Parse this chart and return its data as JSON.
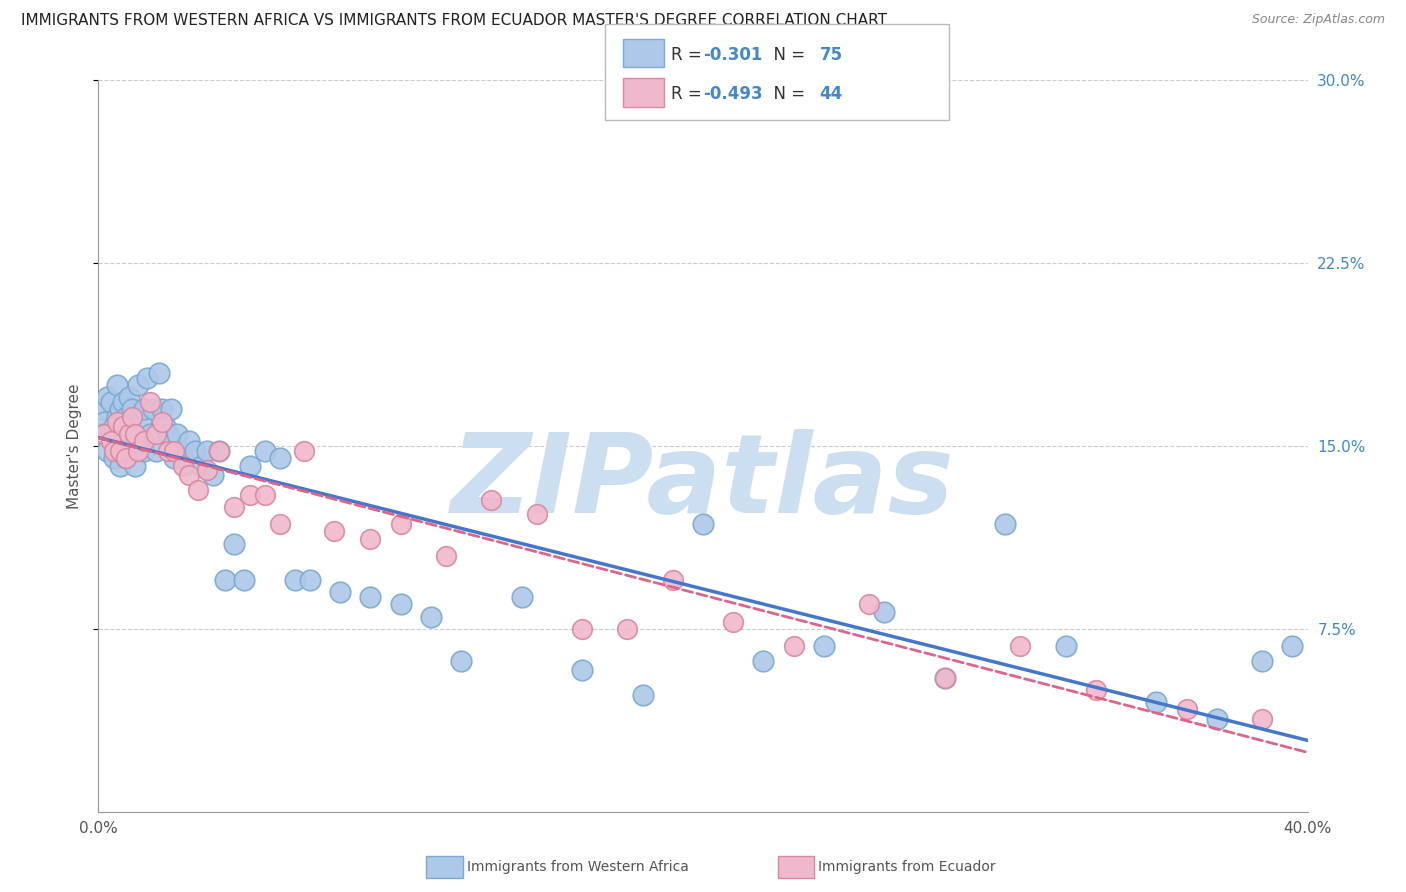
{
  "title": "IMMIGRANTS FROM WESTERN AFRICA VS IMMIGRANTS FROM ECUADOR MASTER'S DEGREE CORRELATION CHART",
  "source": "Source: ZipAtlas.com",
  "ylabel": "Master's Degree",
  "series1_label": "Immigrants from Western Africa",
  "series1_color": "#adc8e8",
  "series1_edge_color": "#7aaad0",
  "series1_R": -0.301,
  "series1_N": 75,
  "series2_label": "Immigrants from Ecuador",
  "series2_color": "#f0b8cc",
  "series2_edge_color": "#d888a0",
  "series2_R": -0.493,
  "series2_N": 44,
  "x_min": 0.0,
  "x_max": 0.4,
  "y_min": 0.0,
  "y_max": 0.3,
  "y_ticks": [
    0.075,
    0.15,
    0.225,
    0.3
  ],
  "y_tick_labels": [
    "7.5%",
    "15.0%",
    "22.5%",
    "30.0%"
  ],
  "watermark": "ZIPatlas",
  "watermark_color": "#ccdff0",
  "line1_color": "#4477cc",
  "line2_color": "#dd6688",
  "background_color": "#ffffff",
  "title_fontsize": 11,
  "axis_label_color": "#4488cc",
  "series1_x": [
    0.001,
    0.002,
    0.002,
    0.003,
    0.003,
    0.004,
    0.004,
    0.005,
    0.005,
    0.006,
    0.006,
    0.006,
    0.007,
    0.007,
    0.007,
    0.008,
    0.008,
    0.009,
    0.009,
    0.01,
    0.01,
    0.011,
    0.011,
    0.012,
    0.012,
    0.013,
    0.014,
    0.015,
    0.015,
    0.016,
    0.017,
    0.018,
    0.019,
    0.02,
    0.021,
    0.022,
    0.023,
    0.024,
    0.025,
    0.026,
    0.027,
    0.028,
    0.03,
    0.032,
    0.034,
    0.036,
    0.038,
    0.04,
    0.042,
    0.045,
    0.048,
    0.05,
    0.055,
    0.06,
    0.065,
    0.07,
    0.08,
    0.09,
    0.1,
    0.11,
    0.12,
    0.14,
    0.16,
    0.18,
    0.2,
    0.22,
    0.24,
    0.26,
    0.28,
    0.3,
    0.32,
    0.35,
    0.37,
    0.385,
    0.395
  ],
  "series1_y": [
    0.165,
    0.16,
    0.155,
    0.17,
    0.148,
    0.168,
    0.155,
    0.158,
    0.145,
    0.175,
    0.162,
    0.148,
    0.165,
    0.155,
    0.142,
    0.168,
    0.148,
    0.162,
    0.145,
    0.17,
    0.148,
    0.165,
    0.148,
    0.155,
    0.142,
    0.175,
    0.16,
    0.165,
    0.148,
    0.178,
    0.155,
    0.165,
    0.148,
    0.18,
    0.165,
    0.158,
    0.155,
    0.165,
    0.145,
    0.155,
    0.148,
    0.145,
    0.152,
    0.148,
    0.142,
    0.148,
    0.138,
    0.148,
    0.095,
    0.11,
    0.095,
    0.142,
    0.148,
    0.145,
    0.095,
    0.095,
    0.09,
    0.088,
    0.085,
    0.08,
    0.062,
    0.088,
    0.058,
    0.048,
    0.118,
    0.062,
    0.068,
    0.082,
    0.055,
    0.118,
    0.068,
    0.045,
    0.038,
    0.062,
    0.068
  ],
  "series2_x": [
    0.002,
    0.004,
    0.005,
    0.006,
    0.007,
    0.008,
    0.009,
    0.01,
    0.011,
    0.012,
    0.013,
    0.015,
    0.017,
    0.019,
    0.021,
    0.023,
    0.025,
    0.028,
    0.03,
    0.033,
    0.036,
    0.04,
    0.045,
    0.05,
    0.055,
    0.06,
    0.068,
    0.078,
    0.09,
    0.1,
    0.115,
    0.13,
    0.145,
    0.16,
    0.175,
    0.19,
    0.21,
    0.23,
    0.255,
    0.28,
    0.305,
    0.33,
    0.36,
    0.385
  ],
  "series2_y": [
    0.155,
    0.152,
    0.148,
    0.16,
    0.148,
    0.158,
    0.145,
    0.155,
    0.162,
    0.155,
    0.148,
    0.152,
    0.168,
    0.155,
    0.16,
    0.148,
    0.148,
    0.142,
    0.138,
    0.132,
    0.14,
    0.148,
    0.125,
    0.13,
    0.13,
    0.118,
    0.148,
    0.115,
    0.112,
    0.118,
    0.105,
    0.128,
    0.122,
    0.075,
    0.075,
    0.095,
    0.078,
    0.068,
    0.085,
    0.055,
    0.068,
    0.05,
    0.042,
    0.038
  ]
}
